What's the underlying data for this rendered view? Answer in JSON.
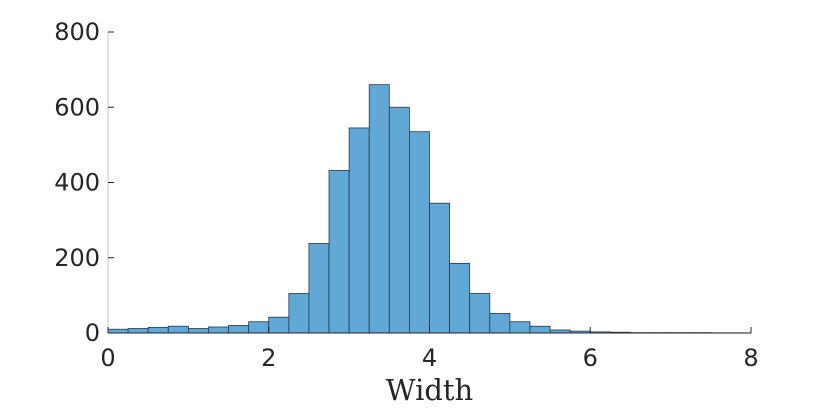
{
  "chart_data": {
    "type": "bar",
    "title": "",
    "xlabel": "Width",
    "ylabel": "",
    "xlim": [
      0,
      8
    ],
    "ylim": [
      0,
      800
    ],
    "x_ticks": [
      0,
      2,
      4,
      6,
      8
    ],
    "y_ticks": [
      0,
      200,
      400,
      600,
      800
    ],
    "bin_width": 0.25,
    "bin_edges": [
      0,
      0.25,
      0.5,
      0.75,
      1,
      1.25,
      1.5,
      1.75,
      2,
      2.25,
      2.5,
      2.75,
      3,
      3.25,
      3.5,
      3.75,
      4,
      4.25,
      4.5,
      4.75,
      5,
      5.25,
      5.5,
      5.75,
      6,
      6.25,
      6.5,
      6.75,
      7,
      7.25,
      7.5,
      7.75,
      8
    ],
    "values": [
      10,
      12,
      15,
      18,
      12,
      16,
      20,
      30,
      42,
      105,
      238,
      432,
      545,
      660,
      600,
      535,
      345,
      185,
      105,
      52,
      30,
      18,
      8,
      5,
      3,
      2,
      1,
      1,
      1,
      1,
      0.5,
      0.5
    ],
    "bar_color": "#62a8d6",
    "bar_edge_color": "#1f3b53",
    "grid": false,
    "legend": "none"
  }
}
